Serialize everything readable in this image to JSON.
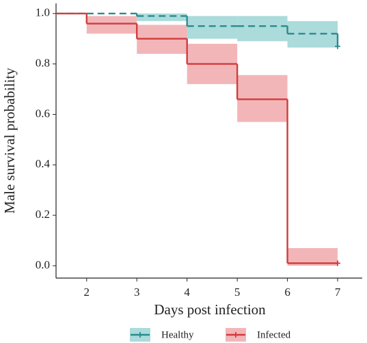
{
  "chart_data": {
    "type": "step",
    "x_label": "Days post infection",
    "y_label": "Male survival probability",
    "xlim": [
      1.39,
      7.49
    ],
    "ylim": [
      -0.049,
      1.04
    ],
    "xticks": [
      2,
      3,
      4,
      5,
      6,
      7
    ],
    "yticks": [
      {
        "value": 0,
        "label": "0.0"
      },
      {
        "value": 0.2,
        "label": "0.2"
      },
      {
        "value": 0.4,
        "label": "0.4"
      },
      {
        "value": 0.6,
        "label": "0.6"
      },
      {
        "value": 0.8,
        "label": "0.8"
      },
      {
        "value": 1,
        "label": "1.0"
      }
    ],
    "legend": "bottom",
    "series": [
      {
        "name": "Healthy",
        "color": "#2b8a8c",
        "band_color": "#8fcfcf",
        "dashed": true,
        "x": [
          1.39,
          2,
          3,
          4,
          5,
          6,
          7
        ],
        "values": [
          1,
          1,
          0.99,
          0.95,
          0.95,
          0.92,
          0.87
        ],
        "lower": [
          1,
          1,
          0.97,
          0.9,
          0.89,
          0.865,
          null
        ],
        "upper": [
          1,
          1,
          1,
          0.99,
          0.99,
          0.97,
          null
        ]
      },
      {
        "name": "Infected",
        "color": "#d23b3b",
        "band_color": "#ee9ea2",
        "dashed": false,
        "x": [
          1.39,
          2,
          3,
          4,
          5,
          6,
          7
        ],
        "values": [
          1,
          0.96,
          0.9,
          0.8,
          0.66,
          0.01,
          0.01
        ],
        "lower": [
          1,
          0.92,
          0.84,
          0.72,
          0.57,
          0,
          null
        ],
        "upper": [
          1,
          0.99,
          0.955,
          0.88,
          0.756,
          0.07,
          null
        ]
      }
    ]
  }
}
